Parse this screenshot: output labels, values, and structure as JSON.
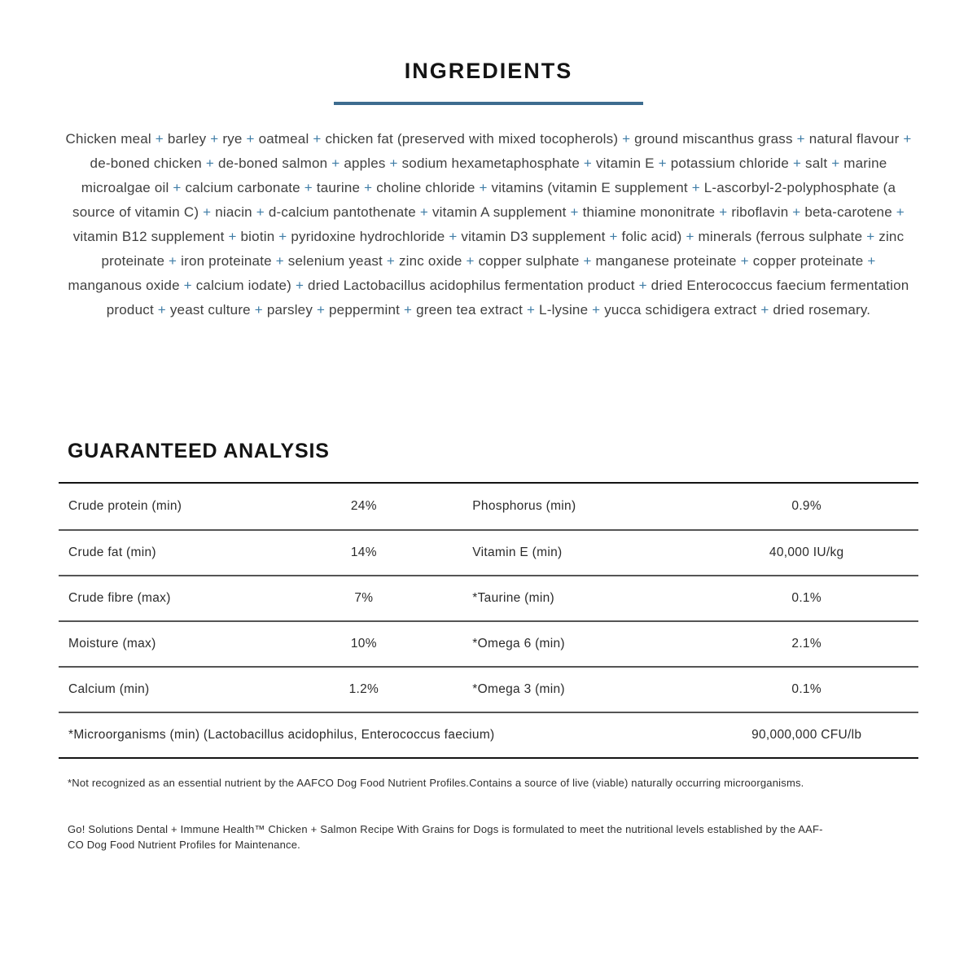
{
  "colors": {
    "plus_blue": "#3e7ca6",
    "underline_blue": "#3d6c8f"
  },
  "ingredients": {
    "title": "INGREDIENTS",
    "text": "Chicken meal + barley + rye + oatmeal + chicken fat (preserved with mixed tocopherols) + ground miscanthus grass + natural flavour + de-boned chicken + de-boned salmon + apples + sodium hexametaphosphate + vitamin E + potassium chloride + salt + marine microalgae oil + calcium carbonate + taurine + choline chloride + vitamins (vitamin E supplement + L-ascorbyl-2-polyphosphate (a source of vitamin C) + niacin + d-calcium pantothenate + vitamin A supplement + thiamine mononitrate + riboflavin + beta-carotene + vitamin B12 supplement + biotin + pyridoxine hydrochloride + vitamin D3 supplement + folic acid) + minerals (ferrous sulphate + zinc proteinate + iron proteinate + selenium yeast + zinc oxide + copper sulphate + manganese proteinate + copper proteinate + manganous oxide + calcium iodate) + dried Lactobacillus acidophilus fermentation product + dried Enterococcus faecium fermentation product + yeast culture + parsley + peppermint + green tea extract + L-lysine + yucca schidigera extract + dried rosemary."
  },
  "analysis": {
    "title": "GUARANTEED ANALYSIS",
    "rows": [
      {
        "left_label": "Crude protein (min)",
        "left_value": "24%",
        "right_label": "Phosphorus (min)",
        "right_value": "0.9%"
      },
      {
        "left_label": "Crude fat (min)",
        "left_value": "14%",
        "right_label": "Vitamin E (min)",
        "right_value": "40,000 IU/kg"
      },
      {
        "left_label": "Crude fibre (max)",
        "left_value": "7%",
        "right_label": "*Taurine (min)",
        "right_value": "0.1%"
      },
      {
        "left_label": "Moisture (max)",
        "left_value": "10%",
        "right_label": "*Omega 6 (min)",
        "right_value": "2.1%"
      },
      {
        "left_label": "Calcium (min)",
        "left_value": "1.2%",
        "right_label": "*Omega 3 (min)",
        "right_value": "0.1%"
      }
    ],
    "full_row": {
      "label": "*Microorganisms (min) (Lactobacillus acidophilus, Enterococcus faecium)",
      "value": "90,000,000 CFU/lb"
    }
  },
  "footnotes": {
    "note1": "*Not recognized as an essential nutrient by the AAFCO Dog Food Nutrient Profiles.Contains a source of live (viable) naturally occurring microorganisms.",
    "note2_line1": "Go! Solutions Dental + Immune Health™ Chicken + Salmon Recipe With Grains for Dogs is formulated to meet the nutritional levels established by the AAF-",
    "note2_line2": "CO Dog Food Nutrient Profiles for Maintenance."
  }
}
